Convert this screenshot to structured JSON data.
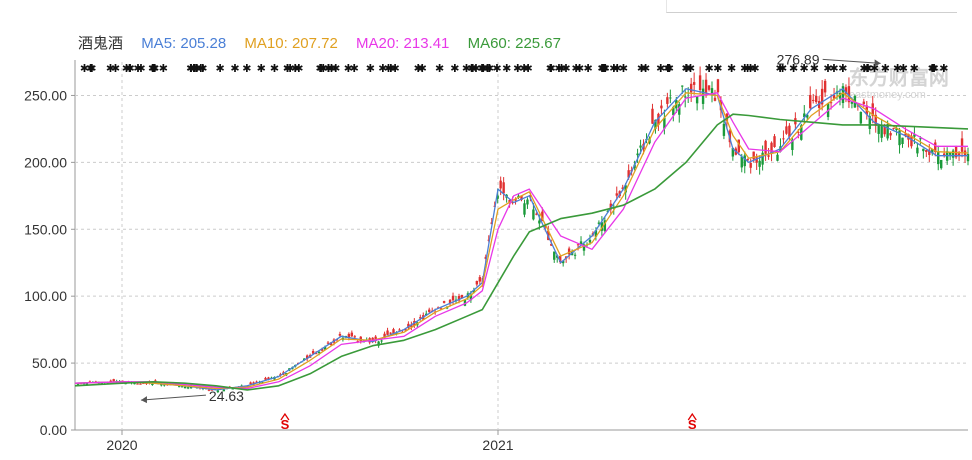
{
  "stock_name": "酒鬼酒",
  "legend": [
    {
      "label": "MA5: 205.28",
      "color": "#4a7fd6"
    },
    {
      "label": "MA10: 207.72",
      "color": "#e0a020"
    },
    {
      "label": "MA20: 213.41",
      "color": "#e838e8"
    },
    {
      "label": "MA60: 225.67",
      "color": "#3a9a3a"
    }
  ],
  "watermark": "东方财富网 eastmoney.com",
  "chart_data": {
    "type": "line",
    "y_ticks": [
      "0.00",
      "50.00",
      "100.00",
      "150.00",
      "200.00",
      "250.00"
    ],
    "ylim": [
      0,
      275
    ],
    "x_ticks": [
      {
        "label": "2020",
        "x": 0
      },
      {
        "label": "2021",
        "x": 12
      }
    ],
    "xlim": [
      -1.5,
      27
    ],
    "grid": true,
    "candles": "red/green daily candlesticks",
    "series": [
      {
        "name": "MA5",
        "color": "#4a7fd6",
        "values": [
          [
            -1.5,
            35
          ],
          [
            0,
            36
          ],
          [
            1,
            35
          ],
          [
            2,
            33
          ],
          [
            3,
            30
          ],
          [
            4,
            33
          ],
          [
            5,
            40
          ],
          [
            6,
            55
          ],
          [
            7,
            70
          ],
          [
            8,
            66
          ],
          [
            9,
            75
          ],
          [
            10,
            90
          ],
          [
            11,
            100
          ],
          [
            11.5,
            110
          ],
          [
            12,
            180
          ],
          [
            12.5,
            170
          ],
          [
            13,
            175
          ],
          [
            14,
            125
          ],
          [
            15,
            145
          ],
          [
            16,
            180
          ],
          [
            17,
            230
          ],
          [
            18,
            255
          ],
          [
            19,
            250
          ],
          [
            19.5,
            210
          ],
          [
            20,
            200
          ],
          [
            21,
            210
          ],
          [
            22,
            240
          ],
          [
            23,
            255
          ],
          [
            24,
            230
          ],
          [
            25,
            220
          ],
          [
            26,
            205
          ],
          [
            27,
            205
          ]
        ]
      },
      {
        "name": "MA10",
        "color": "#e0a020",
        "values": [
          [
            -1.5,
            35
          ],
          [
            0,
            36
          ],
          [
            1,
            35
          ],
          [
            2,
            33
          ],
          [
            3,
            31
          ],
          [
            4,
            32
          ],
          [
            5,
            38
          ],
          [
            6,
            52
          ],
          [
            7,
            68
          ],
          [
            8,
            67
          ],
          [
            9,
            73
          ],
          [
            10,
            88
          ],
          [
            11,
            98
          ],
          [
            11.5,
            108
          ],
          [
            12,
            165
          ],
          [
            12.5,
            172
          ],
          [
            13,
            178
          ],
          [
            14,
            130
          ],
          [
            15,
            140
          ],
          [
            16,
            175
          ],
          [
            17,
            225
          ],
          [
            18,
            252
          ],
          [
            19,
            250
          ],
          [
            19.5,
            220
          ],
          [
            20,
            203
          ],
          [
            21,
            208
          ],
          [
            22,
            235
          ],
          [
            23,
            252
          ],
          [
            24,
            235
          ],
          [
            25,
            222
          ],
          [
            26,
            208
          ],
          [
            27,
            207
          ]
        ]
      },
      {
        "name": "MA20",
        "color": "#e838e8",
        "values": [
          [
            -1.5,
            35
          ],
          [
            0,
            36
          ],
          [
            1,
            36
          ],
          [
            2,
            34
          ],
          [
            3,
            32
          ],
          [
            4,
            31
          ],
          [
            5,
            36
          ],
          [
            6,
            48
          ],
          [
            7,
            64
          ],
          [
            8,
            67
          ],
          [
            9,
            70
          ],
          [
            10,
            85
          ],
          [
            11,
            95
          ],
          [
            11.5,
            104
          ],
          [
            12,
            150
          ],
          [
            12.5,
            175
          ],
          [
            13,
            180
          ],
          [
            14,
            145
          ],
          [
            15,
            135
          ],
          [
            16,
            165
          ],
          [
            17,
            215
          ],
          [
            18,
            248
          ],
          [
            19,
            252
          ],
          [
            19.5,
            230
          ],
          [
            20,
            210
          ],
          [
            21,
            208
          ],
          [
            22,
            228
          ],
          [
            23,
            248
          ],
          [
            24,
            240
          ],
          [
            25,
            225
          ],
          [
            26,
            212
          ],
          [
            27,
            212
          ]
        ]
      },
      {
        "name": "MA60",
        "color": "#3a9a3a",
        "values": [
          [
            -1.5,
            33
          ],
          [
            0,
            35
          ],
          [
            1,
            36
          ],
          [
            2,
            35
          ],
          [
            3,
            33
          ],
          [
            4,
            30
          ],
          [
            5,
            33
          ],
          [
            6,
            42
          ],
          [
            7,
            55
          ],
          [
            8,
            63
          ],
          [
            9,
            67
          ],
          [
            10,
            75
          ],
          [
            11,
            85
          ],
          [
            11.5,
            90
          ],
          [
            12,
            110
          ],
          [
            12.5,
            130
          ],
          [
            13,
            148
          ],
          [
            14,
            158
          ],
          [
            15,
            162
          ],
          [
            16,
            168
          ],
          [
            17,
            180
          ],
          [
            18,
            200
          ],
          [
            19,
            228
          ],
          [
            19.5,
            236
          ],
          [
            20,
            235
          ],
          [
            21,
            232
          ],
          [
            22,
            230
          ],
          [
            23,
            228
          ],
          [
            24,
            228
          ],
          [
            25,
            227
          ],
          [
            26,
            226
          ],
          [
            27,
            225
          ]
        ]
      }
    ],
    "annotations": [
      {
        "label": "276.89",
        "x": 23.0,
        "y": 277
      },
      {
        "label": "24.63",
        "x": 2.2,
        "y": 24.6
      }
    ],
    "markers": [
      {
        "label": "S",
        "x": 5.2
      },
      {
        "label": "S",
        "x": 18.2
      }
    ],
    "dot_row": "event markers"
  }
}
